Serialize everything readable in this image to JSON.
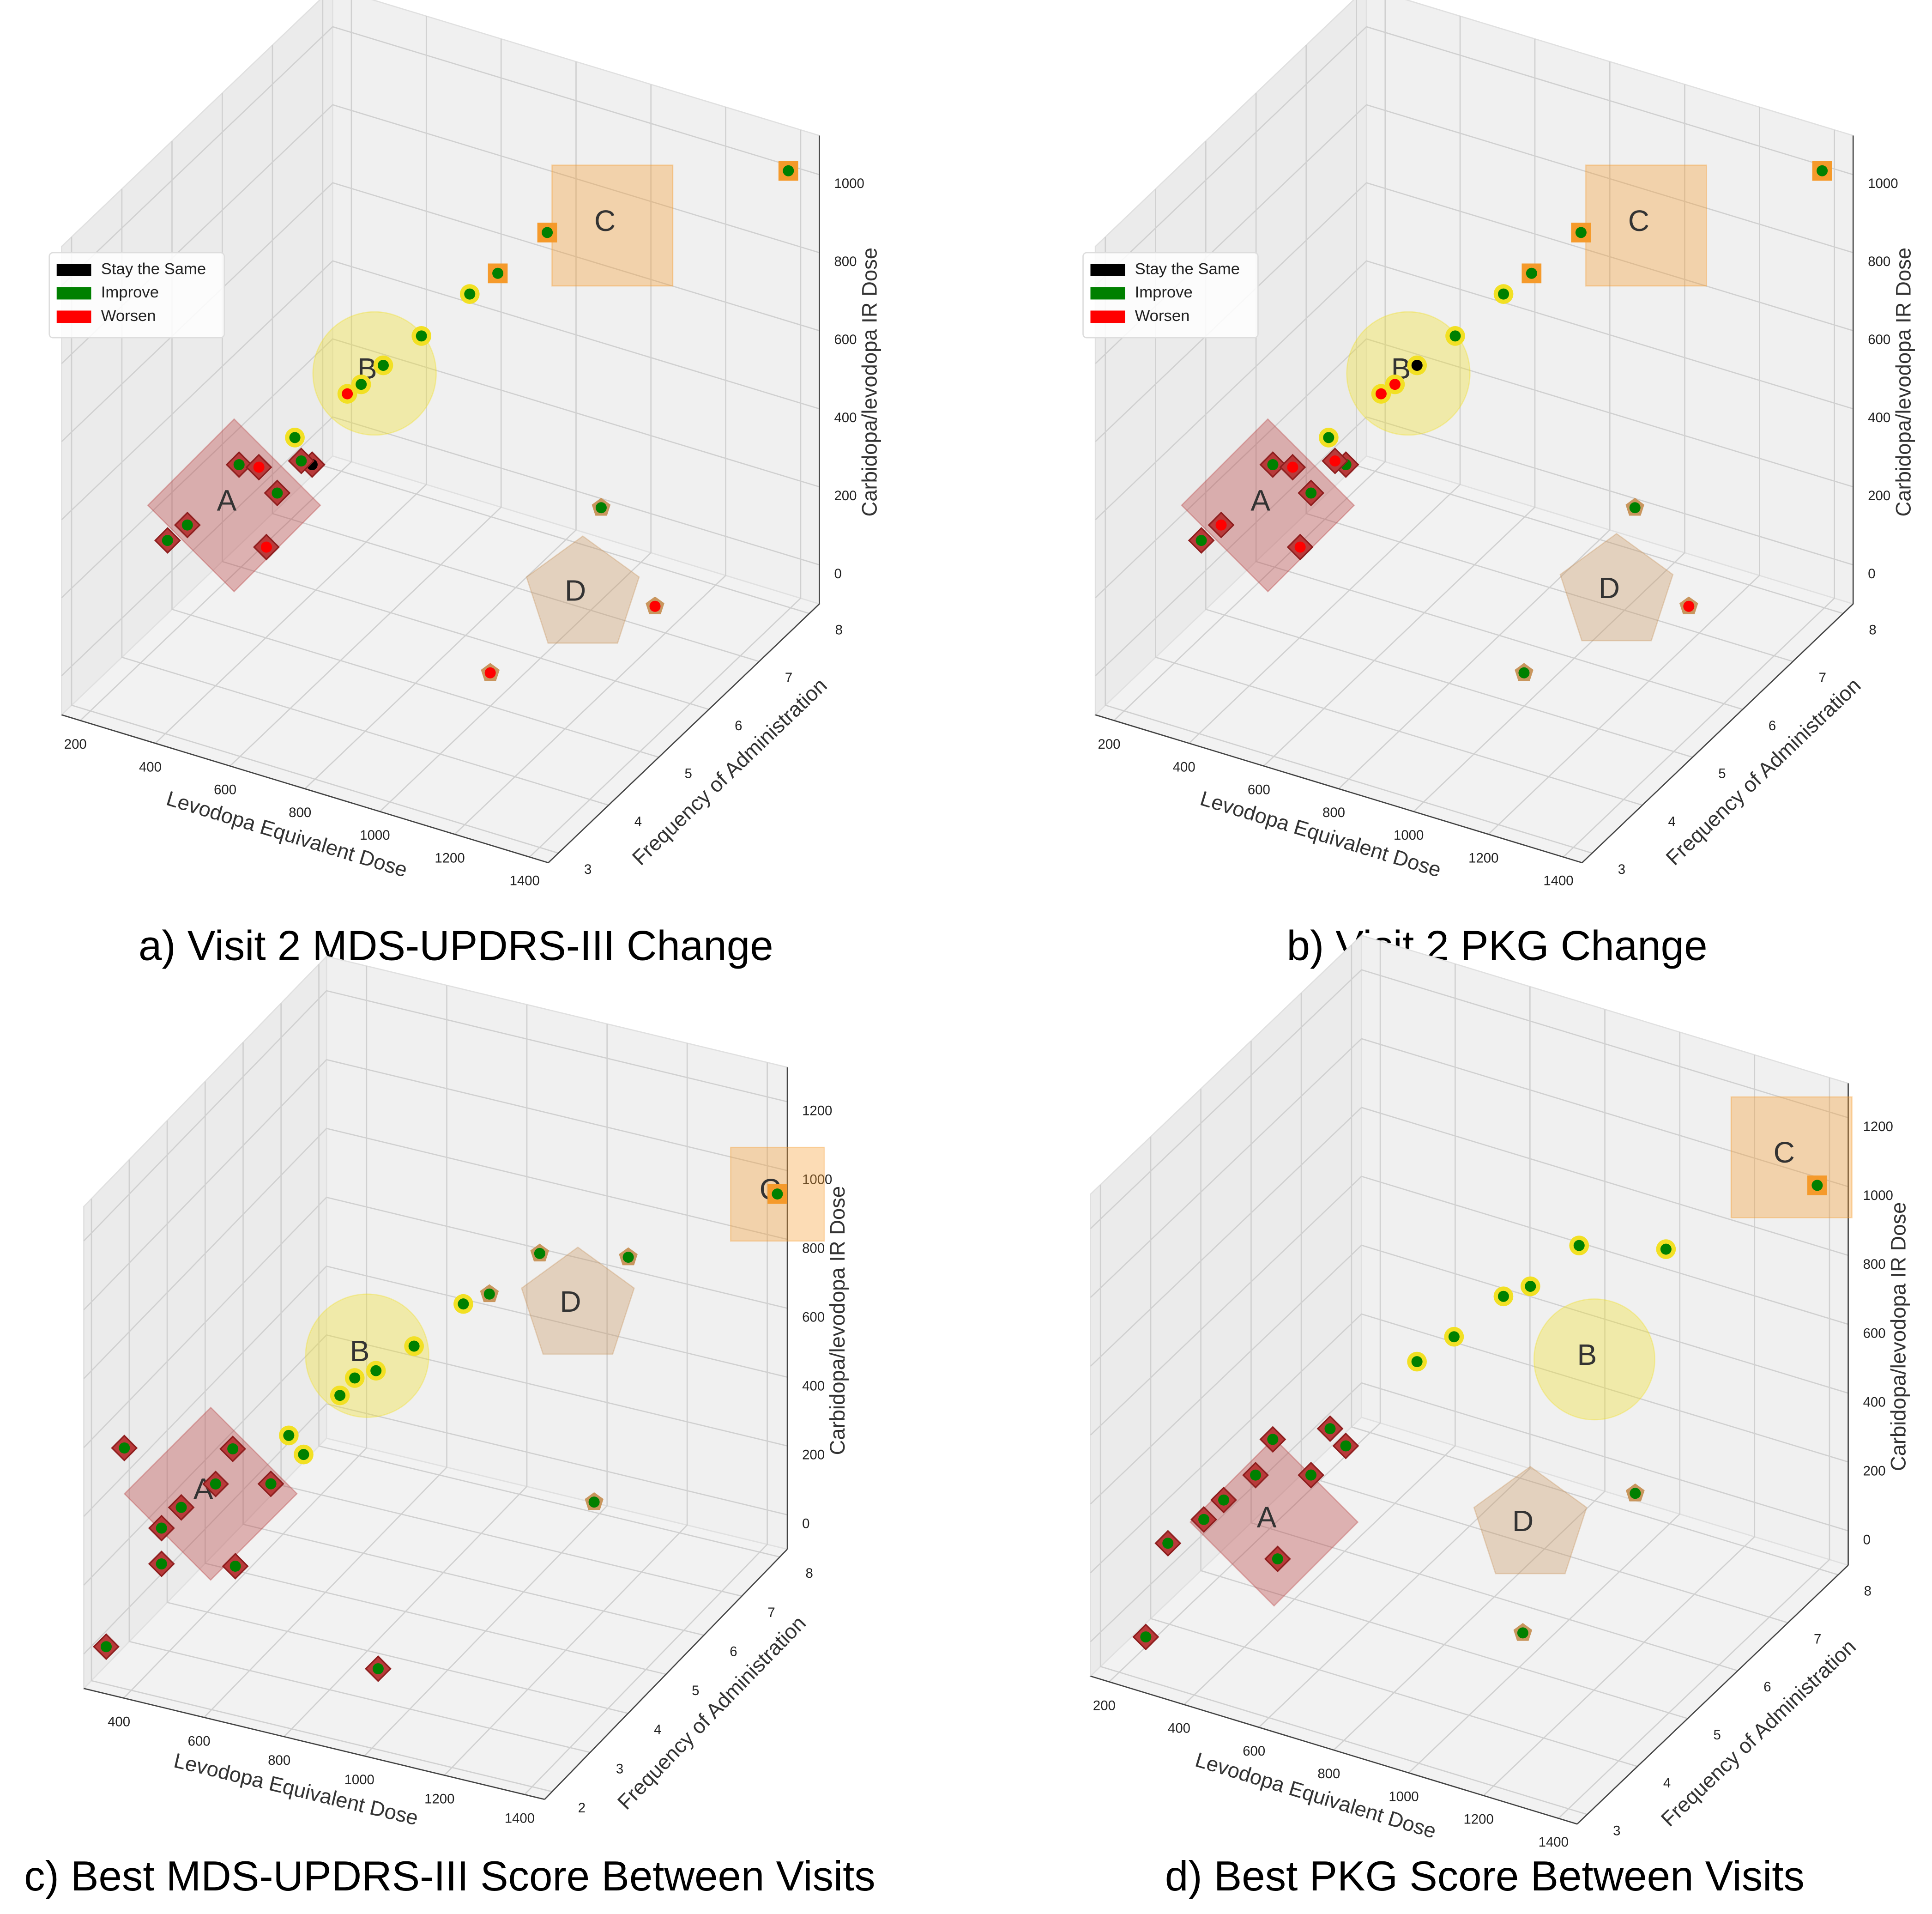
{
  "chart_data": [
    {
      "type": "scatter3d",
      "title": "a) Visit 2 MDS-UPDRS-III Change",
      "xlabel": "Levodopa Equivalent Dose",
      "ylabel": "Frequency of Administration",
      "zlabel": "Carbidopa/levodopa IR Dose",
      "xlim": [
        150,
        1450
      ],
      "ylim": [
        2.8,
        8.2
      ],
      "zlim": [
        -100,
        1100
      ],
      "xticks": [
        200,
        400,
        600,
        800,
        1000,
        1200,
        1400
      ],
      "yticks": [
        3,
        4,
        5,
        6,
        7,
        8
      ],
      "zticks": [
        0,
        200,
        400,
        600,
        800,
        1000
      ],
      "grid": true,
      "legend": "upper left",
      "region_labels": [
        "A",
        "B",
        "C",
        "D"
      ],
      "marker_colors": {
        "diamond": "#b83a3a",
        "circle": "#f2e024",
        "square": "#f59a2b",
        "pentagon": "#c9965e"
      },
      "series": [
        {
          "name": "Stay the Same",
          "color": "black",
          "x": [
            390
          ],
          "y": [
            6
          ],
          "z": [
            218
          ],
          "markers": [
            "diamond"
          ]
        },
        {
          "name": "Improve",
          "color": "green",
          "x": [
            1394,
            884,
            752,
            677,
            548,
            446,
            387,
            344,
            329,
            361,
            431,
            325,
            272,
            894
          ],
          "y": [
            8,
            7,
            7,
            7,
            7,
            7,
            7,
            6,
            5,
            6,
            5,
            4,
            4,
            8
          ],
          "z": [
            1018,
            834,
            691,
            616,
            471,
            366,
            300,
            274,
            323,
            219,
            280,
            290,
            235,
            9
          ],
          "markers": [
            "square",
            "square",
            "square",
            "circle",
            "circle",
            "circle",
            "circle",
            "circle",
            "diamond",
            "diamond",
            "diamond",
            "diamond",
            "diamond",
            "pentagon"
          ]
        },
        {
          "name": "Worsen",
          "color": "red",
          "x": [
            350,
            382,
            402,
            1306,
            1134
          ],
          "y": [
            7,
            5,
            5,
            6,
            4
          ],
          "z": [
            265,
            332,
            133,
            122,
            147
          ],
          "markers": [
            "circle",
            "diamond",
            "diamond",
            "pentagon",
            "pentagon"
          ]
        }
      ]
    },
    {
      "type": "scatter3d",
      "title": "b) Visit 2 PKG Change",
      "xlabel": "Levodopa Equivalent Dose",
      "ylabel": "Frequency of Administration",
      "zlabel": "Carbidopa/levodopa IR Dose",
      "xlim": [
        150,
        1450
      ],
      "ylim": [
        2.8,
        8.2
      ],
      "zlim": [
        -100,
        1100
      ],
      "xticks": [
        200,
        400,
        600,
        800,
        1000,
        1200,
        1400
      ],
      "yticks": [
        3,
        4,
        5,
        6,
        7,
        8
      ],
      "zticks": [
        0,
        200,
        400,
        600,
        800,
        1000
      ],
      "grid": true,
      "legend": "upper left",
      "region_labels": [
        "A",
        "B",
        "C",
        "D"
      ],
      "marker_colors": {
        "diamond": "#b83a3a",
        "circle": "#f2e024",
        "square": "#f59a2b",
        "pentagon": "#c9965e"
      },
      "series": [
        {
          "name": "Stay the Same",
          "color": "black",
          "x": [
            446
          ],
          "y": [
            7
          ],
          "z": [
            366
          ],
          "markers": [
            "circle"
          ]
        },
        {
          "name": "Improve",
          "color": "green",
          "x": [
            1394,
            884,
            752,
            677,
            548,
            344,
            329,
            390,
            431,
            272,
            894,
            1134
          ],
          "y": [
            8,
            7,
            7,
            7,
            7,
            6,
            5,
            6,
            5,
            4,
            8,
            4
          ],
          "z": [
            1018,
            834,
            691,
            616,
            471,
            274,
            323,
            218,
            280,
            235,
            9,
            147
          ],
          "markers": [
            "square",
            "square",
            "square",
            "circle",
            "circle",
            "circle",
            "diamond",
            "diamond",
            "diamond",
            "diamond",
            "pentagon",
            "pentagon"
          ]
        },
        {
          "name": "Worsen",
          "color": "red",
          "x": [
            387,
            350,
            382,
            361,
            325,
            402,
            1306
          ],
          "y": [
            7,
            7,
            5,
            6,
            4,
            5,
            6
          ],
          "z": [
            300,
            265,
            332,
            219,
            290,
            133,
            122
          ],
          "markers": [
            "circle",
            "circle",
            "diamond",
            "diamond",
            "diamond",
            "diamond",
            "pentagon"
          ]
        }
      ]
    },
    {
      "type": "scatter3d",
      "title": "c) Best MDS-UPDRS-III Score Between Visits",
      "xlabel": "Levodopa Equivalent Dose",
      "ylabel": "Frequency of Administration",
      "zlabel": "Carbidopa/levodopa IR Dose",
      "xlim": [
        300,
        1450
      ],
      "ylim": [
        1.8,
        8.2
      ],
      "zlim": [
        -100,
        1300
      ],
      "xticks": [
        400,
        600,
        800,
        1000,
        1200,
        1400
      ],
      "yticks": [
        2,
        3,
        4,
        5,
        6,
        7,
        8
      ],
      "zticks": [
        0,
        200,
        400,
        600,
        800,
        1000,
        1200
      ],
      "grid": true,
      "region_labels": [
        "A",
        "B",
        "C",
        "D"
      ],
      "marker_colors": {
        "diamond": "#b83a3a",
        "circle": "#f2e024",
        "square": "#f59a2b",
        "pentagon": "#c9965e"
      },
      "series": [
        {
          "color": "green",
          "x": [
            1444,
            851,
            1072,
            820,
            1176,
            755,
            632,
            537,
            484,
            447,
            414,
            451,
            335,
            369,
            326,
            464,
            335,
            333,
            333,
            470,
            337,
            921
          ],
          "y": [
            8,
            8,
            8,
            7,
            6,
            7,
            7,
            7,
            7,
            7,
            6,
            6,
            2.5,
            5,
            5,
            5,
            4,
            3.5,
            3.5,
            4,
            2,
            3
          ],
          "z": [
            953,
            614,
            665,
            601,
            210,
            554,
            397,
            299,
            263,
            202,
            190,
            145,
            529,
            252,
            138,
            177,
            186,
            182,
            78,
            53,
            9,
            -5
          ],
          "markers": [
            "square",
            "pentagon",
            "pentagon",
            "pentagon",
            "pentagon",
            "circle",
            "circle",
            "circle",
            "circle",
            "circle",
            "circle",
            "circle",
            "diamond",
            "diamond",
            "diamond",
            "diamond",
            "diamond",
            "diamond",
            "diamond",
            "diamond",
            "diamond",
            "diamond"
          ]
        }
      ]
    },
    {
      "type": "scatter3d",
      "title": "d) Best PKG Score Between Visits",
      "xlabel": "Levodopa Equivalent Dose",
      "ylabel": "Frequency of Administration",
      "zlabel": "Carbidopa/levodopa IR Dose",
      "xlim": [
        150,
        1450
      ],
      "ylim": [
        2.8,
        8.2
      ],
      "zlim": [
        -100,
        1300
      ],
      "xticks": [
        200,
        400,
        600,
        800,
        1000,
        1200,
        1400
      ],
      "yticks": [
        3,
        4,
        5,
        6,
        7,
        8
      ],
      "zticks": [
        0,
        200,
        400,
        600,
        800,
        1000,
        1200
      ],
      "grid": true,
      "region_labels": [
        "A",
        "B",
        "C",
        "D"
      ],
      "marker_colors": {
        "diamond": "#b83a3a",
        "circle": "#f2e024",
        "square": "#f59a2b",
        "pentagon": "#c9965e"
      },
      "series": [
        {
          "color": "green",
          "x": [
            1394,
            758,
            990,
            762,
            690,
            558,
            459,
            342,
            361,
            403,
            296,
            444,
            345,
            292,
            263,
            355,
            271,
            1042,
            1144
          ],
          "y": [
            8,
            8,
            8,
            7,
            7,
            7,
            7,
            5,
            6,
            6,
            5,
            5,
            4,
            4,
            3.5,
            5,
            3,
            7,
            4
          ],
          "z": [
            1013,
            628,
            694,
            650,
            597,
            436,
            331,
            345,
            243,
            207,
            226,
            275,
            309,
            235,
            226,
            2,
            26,
            141,
            187
          ],
          "markers": [
            "square",
            "circle",
            "circle",
            "circle",
            "circle",
            "circle",
            "circle",
            "diamond",
            "diamond",
            "diamond",
            "diamond",
            "diamond",
            "diamond",
            "diamond",
            "diamond",
            "diamond",
            "diamond",
            "pentagon",
            "pentagon"
          ]
        }
      ]
    }
  ]
}
